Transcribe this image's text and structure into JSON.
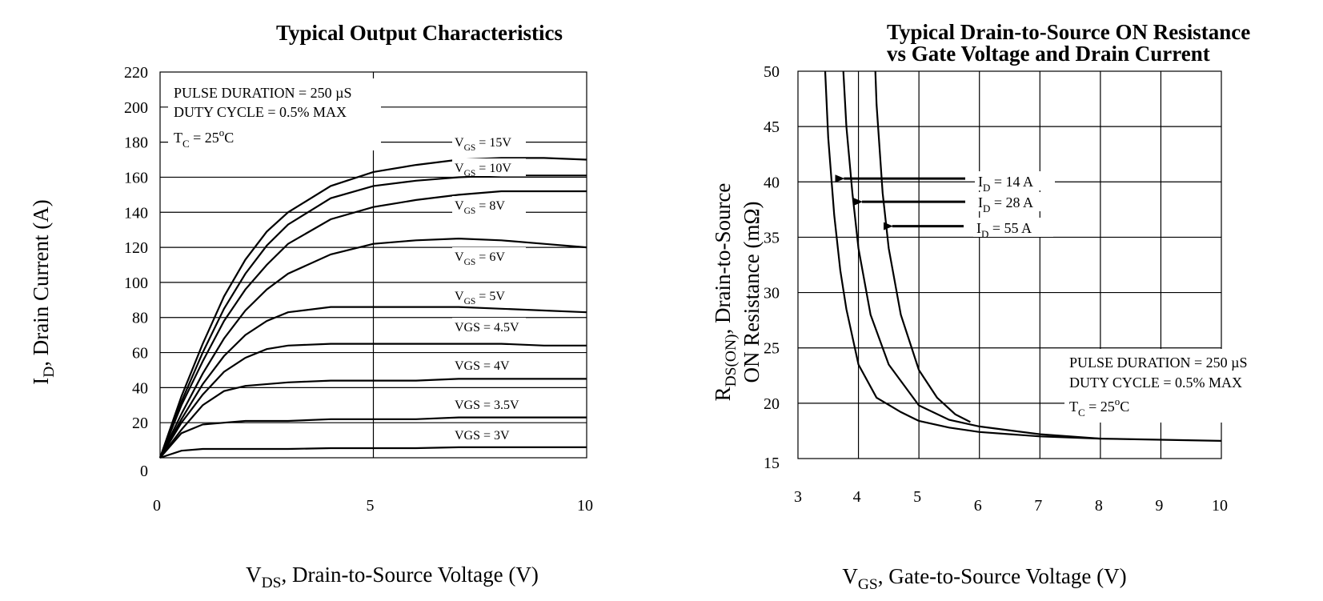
{
  "chart_data": [
    {
      "type": "line",
      "title": "Typical Output Characteristics",
      "xlabel_main": "V",
      "xlabel_sub": "DS",
      "xlabel_rest": ", Drain-to-Source Voltage (V)",
      "ylabel_main": "I",
      "ylabel_sub": "D",
      "ylabel_rest": ", Drain Current (A)",
      "xlim": [
        0,
        10
      ],
      "ylim": [
        0,
        220
      ],
      "xticks": [
        "0",
        "5",
        "10"
      ],
      "yticks": [
        "0",
        "20",
        "40",
        "60",
        "80",
        "100",
        "120",
        "140",
        "160",
        "180",
        "200",
        "220"
      ],
      "grid": true,
      "notes": [
        "PULSE DURATION = 250 µS",
        "DUTY CYCLE = 0.5% MAX"
      ],
      "tc_main": "T",
      "tc_sub": "C",
      "tc_rest": " = 25",
      "tc_unit": "C",
      "tc_deg": "o",
      "series": [
        {
          "name": "15V",
          "label_prefix": "V",
          "label_sub": "GS",
          "label_rest": " = 15V",
          "x": [
            0,
            0.5,
            1,
            1.5,
            2,
            2.5,
            3,
            4,
            5,
            6,
            7,
            8,
            9,
            10
          ],
          "y": [
            0,
            35,
            65,
            92,
            113,
            129,
            140,
            155,
            163,
            167,
            170,
            171,
            171,
            170
          ]
        },
        {
          "name": "10V",
          "label_prefix": "V",
          "label_sub": "GS",
          "label_rest": " = 10V",
          "x": [
            0,
            0.5,
            1,
            1.5,
            2,
            2.5,
            3,
            4,
            5,
            6,
            7,
            8,
            9,
            10
          ],
          "y": [
            0,
            32,
            60,
            85,
            105,
            121,
            133,
            148,
            155,
            158,
            160,
            161,
            161,
            161
          ]
        },
        {
          "name": "8V",
          "label_prefix": "V",
          "label_sub": "GS",
          "label_rest": " = 8V",
          "x": [
            0,
            0.5,
            1,
            1.5,
            2,
            2.5,
            3,
            4,
            5,
            6,
            7,
            8,
            9,
            10
          ],
          "y": [
            0,
            30,
            55,
            78,
            96,
            110,
            122,
            136,
            143,
            147,
            150,
            152,
            152,
            152
          ]
        },
        {
          "name": "6V",
          "label_prefix": "V",
          "label_sub": "GS",
          "label_rest": " = 6V",
          "x": [
            0,
            0.5,
            1,
            1.5,
            2,
            2.5,
            3,
            4,
            5,
            6,
            7,
            8,
            9,
            10
          ],
          "y": [
            0,
            25,
            48,
            68,
            84,
            96,
            105,
            116,
            122,
            124,
            125,
            124,
            122,
            120
          ]
        },
        {
          "name": "5V",
          "label_prefix": "V",
          "label_sub": "GS",
          "label_rest": " = 5V",
          "x": [
            0,
            0.5,
            1,
            1.5,
            2,
            2.5,
            3,
            4,
            5,
            6,
            7,
            8,
            9,
            10
          ],
          "y": [
            0,
            22,
            42,
            58,
            70,
            78,
            83,
            86,
            86,
            86,
            86,
            85,
            84,
            83
          ]
        },
        {
          "name": "4.5V",
          "label_prefix": "VGS",
          "label_sub": "",
          "label_rest": " = 4.5V",
          "x": [
            0,
            0.5,
            1,
            1.5,
            2,
            2.5,
            3,
            4,
            5,
            6,
            7,
            8,
            9,
            10
          ],
          "y": [
            0,
            20,
            36,
            49,
            57,
            62,
            64,
            65,
            65,
            65,
            65,
            65,
            64,
            64
          ]
        },
        {
          "name": "4V",
          "label_prefix": "VGS",
          "label_sub": "",
          "label_rest": " = 4V",
          "x": [
            0,
            0.5,
            1,
            1.5,
            2,
            3,
            4,
            5,
            6,
            7,
            8,
            9,
            10
          ],
          "y": [
            0,
            16,
            30,
            38,
            41,
            43,
            44,
            44,
            44,
            45,
            45,
            45,
            45
          ]
        },
        {
          "name": "3.5V",
          "label_prefix": "VGS",
          "label_sub": "",
          "label_rest": " = 3.5V",
          "x": [
            0,
            0.5,
            1,
            1.5,
            2,
            3,
            4,
            5,
            6,
            7,
            8,
            9,
            10
          ],
          "y": [
            0,
            14,
            19,
            20,
            21,
            21,
            22,
            22,
            22,
            23,
            23,
            23,
            23
          ]
        },
        {
          "name": "3V",
          "label_prefix": "VGS",
          "label_sub": "",
          "label_rest": " = 3V",
          "x": [
            0,
            0.5,
            1,
            2,
            3,
            4,
            5,
            6,
            7,
            8,
            9,
            10
          ],
          "y": [
            0,
            4,
            5,
            5,
            5,
            5.5,
            5.5,
            5.5,
            6,
            6,
            6,
            6
          ]
        }
      ]
    },
    {
      "type": "line",
      "title_line1": "Typical Drain-to-Source ON Resistance",
      "title_line2": "vs Gate Voltage and Drain Current",
      "xlabel_main": "V",
      "xlabel_sub": "GS",
      "xlabel_rest": ", Gate-to-Source Voltage (V)",
      "ylabel_line1_main": "R",
      "ylabel_line1_sub": "DS(ON)",
      "ylabel_line1_rest": ", Drain-to-Source",
      "ylabel_line2": "ON Resistance (mΩ)",
      "xlim": [
        3,
        10
      ],
      "ylim": [
        15,
        50
      ],
      "xticks": [
        "3",
        "4",
        "5",
        "6",
        "7",
        "8",
        "9",
        "10"
      ],
      "yticks": [
        "15",
        "20",
        "25",
        "30",
        "35",
        "40",
        "45",
        "50"
      ],
      "grid": true,
      "notes": [
        "PULSE DURATION = 250 µS",
        "DUTY CYCLE = 0.5% MAX"
      ],
      "tc_main": "T",
      "tc_sub": "C",
      "tc_rest": " = 25",
      "tc_unit": "C",
      "tc_deg": "o",
      "series": [
        {
          "name": "14 A",
          "label_prefix": "I",
          "label_sub": "D",
          "label_rest": " = 14 A",
          "arrow_at": [
            3.6,
            40.3
          ],
          "x": [
            3.45,
            3.5,
            3.6,
            3.7,
            3.8,
            4,
            4.3,
            4.7,
            5,
            5.5,
            6,
            7,
            8,
            9,
            10
          ],
          "y": [
            50,
            44,
            37,
            32,
            28.5,
            23.5,
            20.5,
            19.2,
            18.4,
            17.8,
            17.4,
            17,
            16.8,
            16.7,
            16.6
          ]
        },
        {
          "name": "28 A",
          "label_prefix": "I",
          "label_sub": "D",
          "label_rest": " = 28 A",
          "arrow_at": [
            3.9,
            38.2
          ],
          "x": [
            3.75,
            3.8,
            3.9,
            4,
            4.2,
            4.5,
            5,
            5.5,
            6,
            7,
            8
          ],
          "y": [
            50,
            45,
            39,
            34,
            28,
            23.5,
            19.8,
            18.5,
            17.9,
            17.2,
            16.8
          ]
        },
        {
          "name": "55 A",
          "label_prefix": "I",
          "label_sub": "D",
          "label_rest": " =  55 A",
          "arrow_at": [
            4.4,
            36
          ],
          "x": [
            4.28,
            4.3,
            4.4,
            4.5,
            4.7,
            5,
            5.3,
            5.6,
            5.85
          ],
          "y": [
            50,
            47,
            39,
            34,
            28,
            23,
            20.5,
            19,
            18.3
          ]
        }
      ]
    }
  ]
}
